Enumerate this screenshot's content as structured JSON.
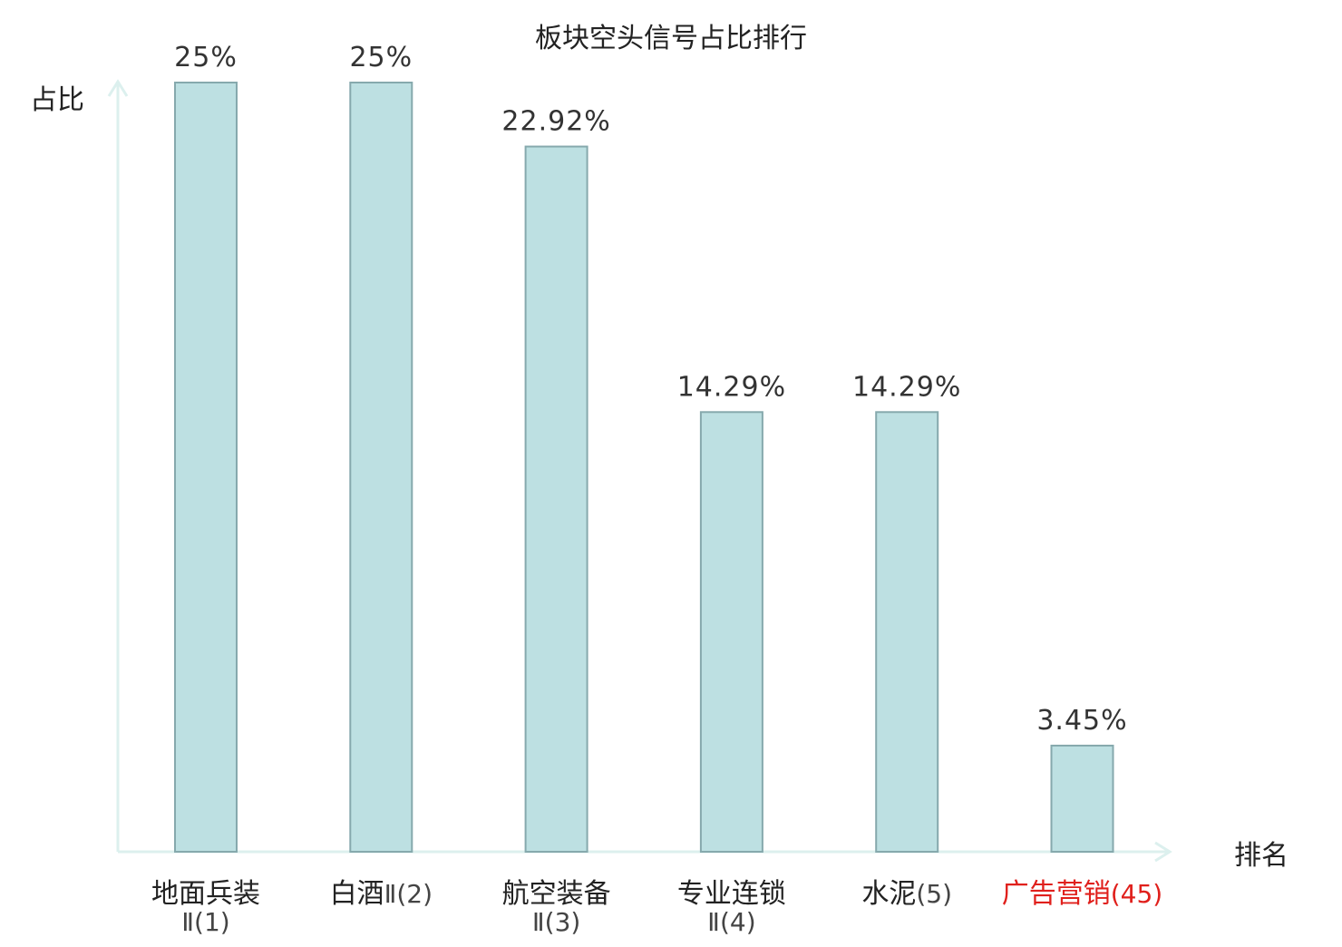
{
  "chart_data": {
    "type": "bar",
    "title": "板块空头信号占比排行",
    "ylabel": "占比",
    "xlabel": "排名",
    "ylim": [
      0,
      25
    ],
    "grid": false,
    "categories": [
      {
        "name": "地面兵装",
        "suffix": "Ⅱ(1)",
        "highlight": false
      },
      {
        "name": "白酒",
        "suffix": "Ⅱ(2)",
        "highlight": false
      },
      {
        "name": "航空装备",
        "suffix": "Ⅱ(3)",
        "highlight": false
      },
      {
        "name": "专业连锁",
        "suffix": "Ⅱ(4)",
        "highlight": false
      },
      {
        "name": "水泥",
        "suffix": "(5)",
        "highlight": false
      },
      {
        "name": "广告营销",
        "suffix": "(45)",
        "highlight": true
      }
    ],
    "values": [
      25,
      25,
      22.92,
      14.29,
      14.29,
      3.45
    ],
    "value_labels": [
      "25%",
      "25%",
      "22.92%",
      "14.29%",
      "14.29%",
      "3.45%"
    ],
    "colors": {
      "bar_fill": "#bde0e2",
      "bar_stroke": "#86a9ad",
      "axis": "#dcf0ee",
      "text": "#222222",
      "label_text": "#333333",
      "highlight_text": "#e0201c"
    }
  }
}
